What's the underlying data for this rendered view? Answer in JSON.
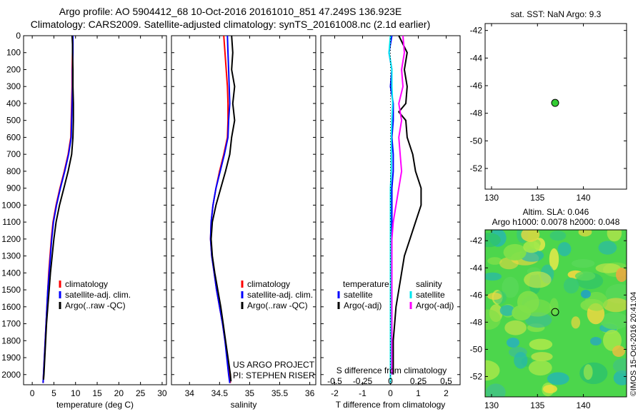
{
  "header": {
    "title_line1": "Argo profile: AO 5904412_68 10-Oct-2016 20161010_851 47.249S 136.923E",
    "title_line2": "Climatology: CARS2009. Satellite-adjusted climatology: synTS_20161008.nc (2.1d earlier)"
  },
  "panels": {
    "temperature": {
      "legend": [
        "climatology",
        "satellite-adj. clim.",
        "Argo(..raw -QC)"
      ]
    },
    "salinity": {
      "legend": [
        "climatology",
        "satellite-adj. clim.",
        "Argo(..raw -QC)"
      ],
      "project_line1": "US ARGO PROJECT",
      "project_line2": "PI: STEPHEN RISER"
    },
    "difference": {
      "legend_temp_title": "temperature",
      "legend_temp": [
        "satellite",
        "Argo(-adj)"
      ],
      "legend_sal_title": "salinity",
      "legend_sal": [
        "satellite",
        "Argo(-adj)"
      ],
      "top_axis_label": "S difference from climatology"
    },
    "sst_map": {
      "title": "sat. SST: NaN Argo: 9.3"
    },
    "sla_map": {
      "title_line1": "Altim. SLA: 0.046",
      "title_line2": "Argo h1000: 0.0078 h2000: 0.048"
    },
    "credit": "©IMOS 15-Oct-2016 20:41:04"
  },
  "colors": {
    "climatology": "#ff0000",
    "satellite_adj": "#0000ff",
    "argo": "#000000",
    "salinity_satellite": "#00e5ee",
    "salinity_argo": "#ff00ff",
    "argo_marker_fill": "#33cc33",
    "map_background_green": "#4cd64c"
  },
  "chart_data": [
    {
      "type": "line",
      "xlabel": "temperature (deg C)",
      "ylabel": "",
      "xlim": [
        -2,
        31
      ],
      "ylim": [
        2060,
        0
      ],
      "xticks": [
        0,
        5,
        10,
        15,
        20,
        25,
        30
      ],
      "yticks": [
        0,
        100,
        200,
        300,
        400,
        500,
        600,
        700,
        800,
        900,
        1000,
        1100,
        1200,
        1300,
        1400,
        1500,
        1600,
        1700,
        1800,
        1900,
        2000
      ],
      "legend_position": "lower-center",
      "series": [
        {
          "name": "climatology",
          "color": "#ff0000",
          "points": [
            [
              9.3,
              0
            ],
            [
              9.3,
              100
            ],
            [
              9.2,
              200
            ],
            [
              9.2,
              300
            ],
            [
              9.1,
              400
            ],
            [
              9.0,
              500
            ],
            [
              8.9,
              600
            ],
            [
              8.3,
              700
            ],
            [
              7.4,
              800
            ],
            [
              6.4,
              900
            ],
            [
              5.5,
              1000
            ],
            [
              4.8,
              1100
            ],
            [
              4.4,
              1200
            ],
            [
              4.1,
              1300
            ],
            [
              3.8,
              1400
            ],
            [
              3.6,
              1500
            ],
            [
              3.4,
              1600
            ],
            [
              3.2,
              1700
            ],
            [
              3.0,
              1800
            ],
            [
              2.8,
              1900
            ],
            [
              2.6,
              2000
            ],
            [
              2.5,
              2050
            ]
          ]
        },
        {
          "name": "satellite-adj. clim.",
          "color": "#0000ff",
          "points": [
            [
              9.4,
              0
            ],
            [
              9.4,
              100
            ],
            [
              9.3,
              200
            ],
            [
              9.3,
              300
            ],
            [
              9.2,
              400
            ],
            [
              9.1,
              500
            ],
            [
              9.0,
              600
            ],
            [
              8.4,
              700
            ],
            [
              7.5,
              800
            ],
            [
              6.5,
              900
            ],
            [
              5.6,
              1000
            ],
            [
              4.9,
              1100
            ],
            [
              4.5,
              1200
            ],
            [
              4.2,
              1300
            ],
            [
              3.9,
              1400
            ],
            [
              3.6,
              1500
            ],
            [
              3.4,
              1600
            ],
            [
              3.2,
              1700
            ],
            [
              3.0,
              1800
            ],
            [
              2.8,
              1900
            ],
            [
              2.6,
              2000
            ],
            [
              2.5,
              2050
            ]
          ]
        },
        {
          "name": "Argo(..raw -QC)",
          "color": "#000000",
          "points": [
            [
              9.2,
              0
            ],
            [
              9.3,
              50
            ],
            [
              9.3,
              100
            ],
            [
              9.4,
              200
            ],
            [
              9.4,
              300
            ],
            [
              9.5,
              400
            ],
            [
              9.5,
              500
            ],
            [
              9.4,
              600
            ],
            [
              9.1,
              700
            ],
            [
              8.3,
              800
            ],
            [
              7.3,
              900
            ],
            [
              6.3,
              1000
            ],
            [
              5.5,
              1100
            ],
            [
              5.0,
              1200
            ],
            [
              4.6,
              1300
            ],
            [
              4.2,
              1400
            ],
            [
              3.9,
              1500
            ],
            [
              3.6,
              1600
            ],
            [
              3.3,
              1700
            ],
            [
              3.1,
              1800
            ],
            [
              2.9,
              1900
            ],
            [
              2.7,
              2000
            ],
            [
              2.6,
              2030
            ]
          ]
        }
      ]
    },
    {
      "type": "line",
      "xlabel": "salinity",
      "ylabel": "",
      "xlim": [
        33.7,
        36.1
      ],
      "ylim": [
        2060,
        0
      ],
      "xticks": [
        34,
        34.5,
        35,
        35.5,
        36
      ],
      "legend_position": "lower-center",
      "series": [
        {
          "name": "climatology",
          "color": "#ff0000",
          "points": [
            [
              34.57,
              0
            ],
            [
              34.59,
              100
            ],
            [
              34.61,
              200
            ],
            [
              34.63,
              300
            ],
            [
              34.64,
              400
            ],
            [
              34.64,
              500
            ],
            [
              34.63,
              600
            ],
            [
              34.57,
              700
            ],
            [
              34.5,
              800
            ],
            [
              34.44,
              900
            ],
            [
              34.39,
              1000
            ],
            [
              34.36,
              1100
            ],
            [
              34.35,
              1200
            ],
            [
              34.37,
              1300
            ],
            [
              34.41,
              1400
            ],
            [
              34.45,
              1500
            ],
            [
              34.5,
              1600
            ],
            [
              34.55,
              1700
            ],
            [
              34.59,
              1800
            ],
            [
              34.63,
              1900
            ],
            [
              34.66,
              2000
            ],
            [
              34.68,
              2050
            ]
          ]
        },
        {
          "name": "satellite-adj. clim.",
          "color": "#0000ff",
          "points": [
            [
              34.63,
              0
            ],
            [
              34.64,
              100
            ],
            [
              34.65,
              200
            ],
            [
              34.66,
              300
            ],
            [
              34.67,
              400
            ],
            [
              34.65,
              500
            ],
            [
              34.64,
              600
            ],
            [
              34.58,
              700
            ],
            [
              34.51,
              800
            ],
            [
              34.44,
              900
            ],
            [
              34.39,
              1000
            ],
            [
              34.36,
              1100
            ],
            [
              34.35,
              1200
            ],
            [
              34.37,
              1300
            ],
            [
              34.41,
              1400
            ],
            [
              34.45,
              1500
            ],
            [
              34.5,
              1600
            ],
            [
              34.55,
              1700
            ],
            [
              34.59,
              1800
            ],
            [
              34.62,
              1900
            ],
            [
              34.65,
              2000
            ],
            [
              34.67,
              2050
            ]
          ]
        },
        {
          "name": "Argo(..raw -QC)",
          "color": "#000000",
          "points": [
            [
              34.7,
              0
            ],
            [
              34.72,
              100
            ],
            [
              34.7,
              200
            ],
            [
              34.75,
              300
            ],
            [
              34.72,
              400
            ],
            [
              34.75,
              500
            ],
            [
              34.7,
              600
            ],
            [
              34.67,
              700
            ],
            [
              34.6,
              800
            ],
            [
              34.52,
              900
            ],
            [
              34.44,
              1000
            ],
            [
              34.38,
              1100
            ],
            [
              34.36,
              1200
            ],
            [
              34.38,
              1300
            ],
            [
              34.42,
              1400
            ],
            [
              34.47,
              1500
            ],
            [
              34.52,
              1600
            ],
            [
              34.56,
              1700
            ],
            [
              34.6,
              1800
            ],
            [
              34.64,
              1900
            ],
            [
              34.68,
              2000
            ],
            [
              34.69,
              2040
            ]
          ]
        }
      ]
    },
    {
      "type": "line",
      "xlabel": "T difference from climatology",
      "ylabel": "",
      "top_axis_label": "S difference from climatology",
      "xlim": [
        -2.5,
        2.5
      ],
      "ylim": [
        2060,
        0
      ],
      "xticks": [
        -2,
        -1,
        0,
        1,
        2
      ],
      "top_xticks": [
        "-0.5",
        "-0.25",
        "0",
        "0.25",
        "0.5"
      ],
      "top_xticks_at_T": [
        -2,
        -1,
        0,
        1,
        2
      ],
      "legend_position": "lower-center",
      "series": [
        {
          "name": "temperature satellite",
          "color": "#0000ff",
          "points": [
            [
              0.05,
              0
            ],
            [
              -0.05,
              100
            ],
            [
              0.05,
              200
            ],
            [
              0.0,
              300
            ],
            [
              0.1,
              400
            ],
            [
              0.1,
              500
            ],
            [
              0.05,
              600
            ],
            [
              0.1,
              700
            ],
            [
              0.1,
              800
            ],
            [
              0.05,
              900
            ],
            [
              0.05,
              1000
            ],
            [
              0.05,
              1100
            ],
            [
              0.0,
              1200
            ],
            [
              0.0,
              1300
            ],
            [
              0.0,
              1400
            ],
            [
              0.0,
              1500
            ],
            [
              0.0,
              1600
            ],
            [
              0.0,
              1700
            ],
            [
              0.0,
              1800
            ],
            [
              0.0,
              1900
            ],
            [
              0.0,
              2000
            ],
            [
              0.0,
              2050
            ]
          ]
        },
        {
          "name": "temperature Argo(-adj)",
          "color": "#000000",
          "points": [
            [
              0.3,
              0
            ],
            [
              0.6,
              100
            ],
            [
              0.5,
              200
            ],
            [
              0.6,
              300
            ],
            [
              0.55,
              400
            ],
            [
              0.3,
              450
            ],
            [
              0.55,
              500
            ],
            [
              0.6,
              600
            ],
            [
              0.8,
              700
            ],
            [
              0.9,
              800
            ],
            [
              1.1,
              900
            ],
            [
              1.1,
              1000
            ],
            [
              0.9,
              1100
            ],
            [
              0.7,
              1200
            ],
            [
              0.5,
              1300
            ],
            [
              0.4,
              1400
            ],
            [
              0.3,
              1500
            ],
            [
              0.2,
              1600
            ],
            [
              0.15,
              1700
            ],
            [
              0.1,
              1800
            ],
            [
              0.1,
              1900
            ],
            [
              0.1,
              2000
            ]
          ]
        },
        {
          "name": "salinity satellite",
          "color": "#00e5ee",
          "points": [
            [
              0.0,
              0
            ],
            [
              -0.05,
              100
            ],
            [
              0.05,
              200
            ],
            [
              0.05,
              300
            ],
            [
              0.08,
              400
            ],
            [
              0.05,
              500
            ],
            [
              0.03,
              600
            ],
            [
              0.03,
              700
            ],
            [
              0.03,
              800
            ],
            [
              0.0,
              900
            ],
            [
              0.0,
              1000
            ],
            [
              0.0,
              1100
            ],
            [
              0.0,
              1200
            ],
            [
              0.0,
              1300
            ],
            [
              0.0,
              1400
            ],
            [
              0.0,
              1500
            ],
            [
              0.0,
              1600
            ],
            [
              0.0,
              1700
            ],
            [
              0.0,
              1800
            ],
            [
              0.0,
              1900
            ],
            [
              0.0,
              2000
            ],
            [
              0.0,
              2050
            ]
          ]
        },
        {
          "name": "salinity Argo(-adj)",
          "color": "#ff00ff",
          "points": [
            [
              0.45,
              0
            ],
            [
              0.5,
              100
            ],
            [
              0.4,
              200
            ],
            [
              0.45,
              300
            ],
            [
              0.3,
              400
            ],
            [
              0.4,
              500
            ],
            [
              0.3,
              600
            ],
            [
              0.35,
              700
            ],
            [
              0.4,
              800
            ],
            [
              0.3,
              900
            ],
            [
              0.2,
              1000
            ],
            [
              0.1,
              1100
            ],
            [
              0.05,
              1200
            ],
            [
              0.05,
              1300
            ],
            [
              0.05,
              1400
            ],
            [
              0.05,
              1500
            ],
            [
              0.05,
              1600
            ],
            [
              0.05,
              1700
            ],
            [
              0.05,
              1800
            ],
            [
              0.05,
              1900
            ],
            [
              0.05,
              2000
            ]
          ]
        }
      ]
    },
    {
      "type": "scatter",
      "title": "sat. SST: NaN Argo: 9.3",
      "xlim": [
        129.3,
        144.7
      ],
      "ylim": [
        -53.5,
        -41.5
      ],
      "xticks": [
        130,
        135,
        140
      ],
      "yticks": [
        -42,
        -44,
        -46,
        -48,
        -50,
        -52
      ],
      "points": [
        [
          136.923,
          -47.249
        ]
      ]
    },
    {
      "type": "heatmap",
      "title": "Altim. SLA: 0.046",
      "subtitle": "Argo h1000: 0.0078 h2000: 0.048",
      "xlim": [
        129.3,
        144.7
      ],
      "ylim": [
        -53.5,
        -41.2
      ],
      "xticks": [
        130,
        135,
        140
      ],
      "yticks": [
        -42,
        -44,
        -46,
        -48,
        -50,
        -52
      ],
      "points": [
        [
          136.923,
          -47.249
        ]
      ]
    }
  ]
}
